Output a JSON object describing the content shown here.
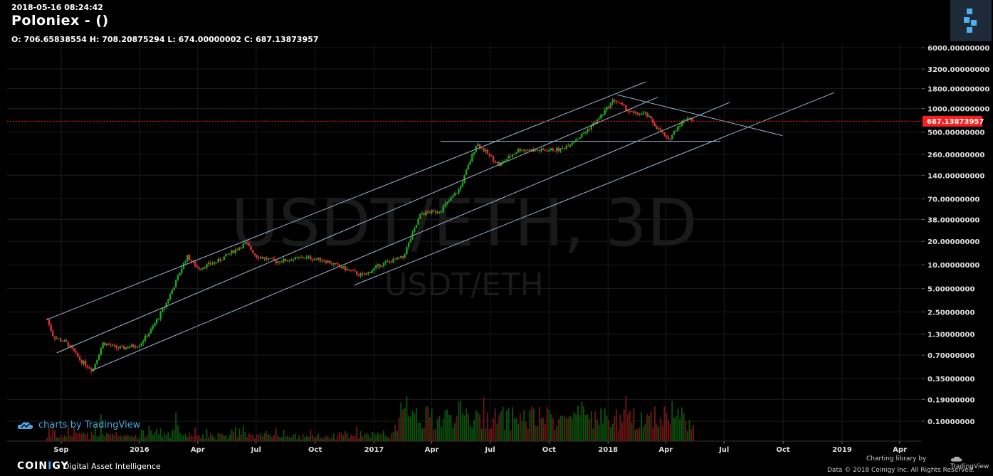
{
  "header": {
    "timestamp": "2018-05-16 08:24:42",
    "title": "Poloniex -  ()",
    "ohlc": "O: 706.65838554 H: 708.20875294 L: 674.00000002 C: 687.13873957"
  },
  "watermark": {
    "main": "USDT/ETH, 3D",
    "sub": "USDT/ETH"
  },
  "badge": {
    "text": "charts by TradingView"
  },
  "footer": {
    "brand_a": "COIN",
    "brand_b": "I",
    "brand_c": "GY",
    "tagline": "Digital Asset Intelligence",
    "charting_library": "Charting library by",
    "tradingview": "TradingView",
    "copyright": "Data © 2018   Coinigy Inc. All Rights Reserved."
  },
  "colors": {
    "up": "#1fa81f",
    "down": "#e03030",
    "line": "#9bb7d4",
    "price_tag": "#ff1e1e",
    "grid": "#1b1b1b"
  },
  "chart_data": {
    "type": "candlestick",
    "pair": "USDT/ETH",
    "interval": "3D",
    "scale": "log",
    "last_price": 687.13873957,
    "last_price_label": "687.13873957",
    "y_ticks": [
      6000,
      3200,
      1800,
      1000,
      500,
      260,
      140,
      70,
      38,
      20,
      10,
      5,
      2.5,
      1.3,
      0.7,
      0.35,
      0.19,
      0.1
    ],
    "y_tick_labels": [
      "6000.00000000",
      "3200.00000000",
      "1800.00000000",
      "1000.00000000",
      "500.00000000",
      "260.00000000",
      "140.00000000",
      "70.00000000",
      "38.00000000",
      "20.00000000",
      "10.00000000",
      "5.00000000",
      "2.50000000",
      "1.30000000",
      "0.70000000",
      "0.35000000",
      "0.19000000",
      "0.10000000"
    ],
    "x_ticks": [
      "Sep",
      "2016",
      "Apr",
      "Jul",
      "Oct",
      "2017",
      "Apr",
      "Jul",
      "Oct",
      "2018",
      "Apr",
      "Jul",
      "Oct",
      "2019",
      "Apr"
    ],
    "x_tick_dates": [
      "2015-09-01",
      "2016-01-01",
      "2016-04-01",
      "2016-07-01",
      "2016-10-01",
      "2017-01-01",
      "2017-04-01",
      "2017-07-01",
      "2017-10-01",
      "2018-01-01",
      "2018-04-01",
      "2018-07-01",
      "2018-10-01",
      "2019-01-01",
      "2019-04-01"
    ],
    "price_path": [
      [
        "2015-08-10",
        2.0
      ],
      [
        "2015-08-20",
        1.2
      ],
      [
        "2015-09-10",
        1.0
      ],
      [
        "2015-10-01",
        0.6
      ],
      [
        "2015-10-20",
        0.45
      ],
      [
        "2015-11-05",
        1.0
      ],
      [
        "2015-12-01",
        0.85
      ],
      [
        "2016-01-01",
        0.95
      ],
      [
        "2016-01-20",
        1.5
      ],
      [
        "2016-02-10",
        3.0
      ],
      [
        "2016-03-01",
        7.0
      ],
      [
        "2016-03-15",
        13.0
      ],
      [
        "2016-04-01",
        9.0
      ],
      [
        "2016-05-01",
        11.0
      ],
      [
        "2016-06-15",
        19.0
      ],
      [
        "2016-07-01",
        13.0
      ],
      [
        "2016-08-01",
        11.0
      ],
      [
        "2016-09-15",
        12.5
      ],
      [
        "2016-10-15",
        11.5
      ],
      [
        "2016-11-15",
        9.0
      ],
      [
        "2016-12-15",
        7.2
      ],
      [
        "2017-01-10",
        10.0
      ],
      [
        "2017-02-15",
        12.5
      ],
      [
        "2017-03-15",
        45.0
      ],
      [
        "2017-04-15",
        50.0
      ],
      [
        "2017-05-15",
        95.0
      ],
      [
        "2017-06-10",
        360.0
      ],
      [
        "2017-07-15",
        190.0
      ],
      [
        "2017-08-15",
        300.0
      ],
      [
        "2017-09-15",
        290.0
      ],
      [
        "2017-10-20",
        300.0
      ],
      [
        "2017-11-20",
        450.0
      ],
      [
        "2017-12-15",
        700.0
      ],
      [
        "2018-01-10",
        1300.0
      ],
      [
        "2018-01-25",
        1050.0
      ],
      [
        "2018-02-10",
        850.0
      ],
      [
        "2018-03-01",
        850.0
      ],
      [
        "2018-03-20",
        550.0
      ],
      [
        "2018-04-05",
        390.0
      ],
      [
        "2018-04-20",
        600.0
      ],
      [
        "2018-05-05",
        780.0
      ],
      [
        "2018-05-16",
        687.14
      ]
    ],
    "trend_lines": [
      [
        [
          "2015-08-10",
          2.0
        ],
        [
          "2018-03-01",
          2200.0
        ]
      ],
      [
        [
          "2015-08-25",
          0.75
        ],
        [
          "2018-03-20",
          1400.0
        ]
      ],
      [
        [
          "2015-10-20",
          0.45
        ],
        [
          "2018-07-10",
          1200.0
        ]
      ],
      [
        [
          "2016-12-01",
          5.5
        ],
        [
          "2018-12-20",
          1600.0
        ]
      ],
      [
        [
          "2017-04-15",
          380.0
        ],
        [
          "2018-06-25",
          380.0
        ]
      ],
      [
        [
          "2018-01-15",
          1500.0
        ],
        [
          "2018-09-30",
          450.0
        ]
      ]
    ]
  }
}
